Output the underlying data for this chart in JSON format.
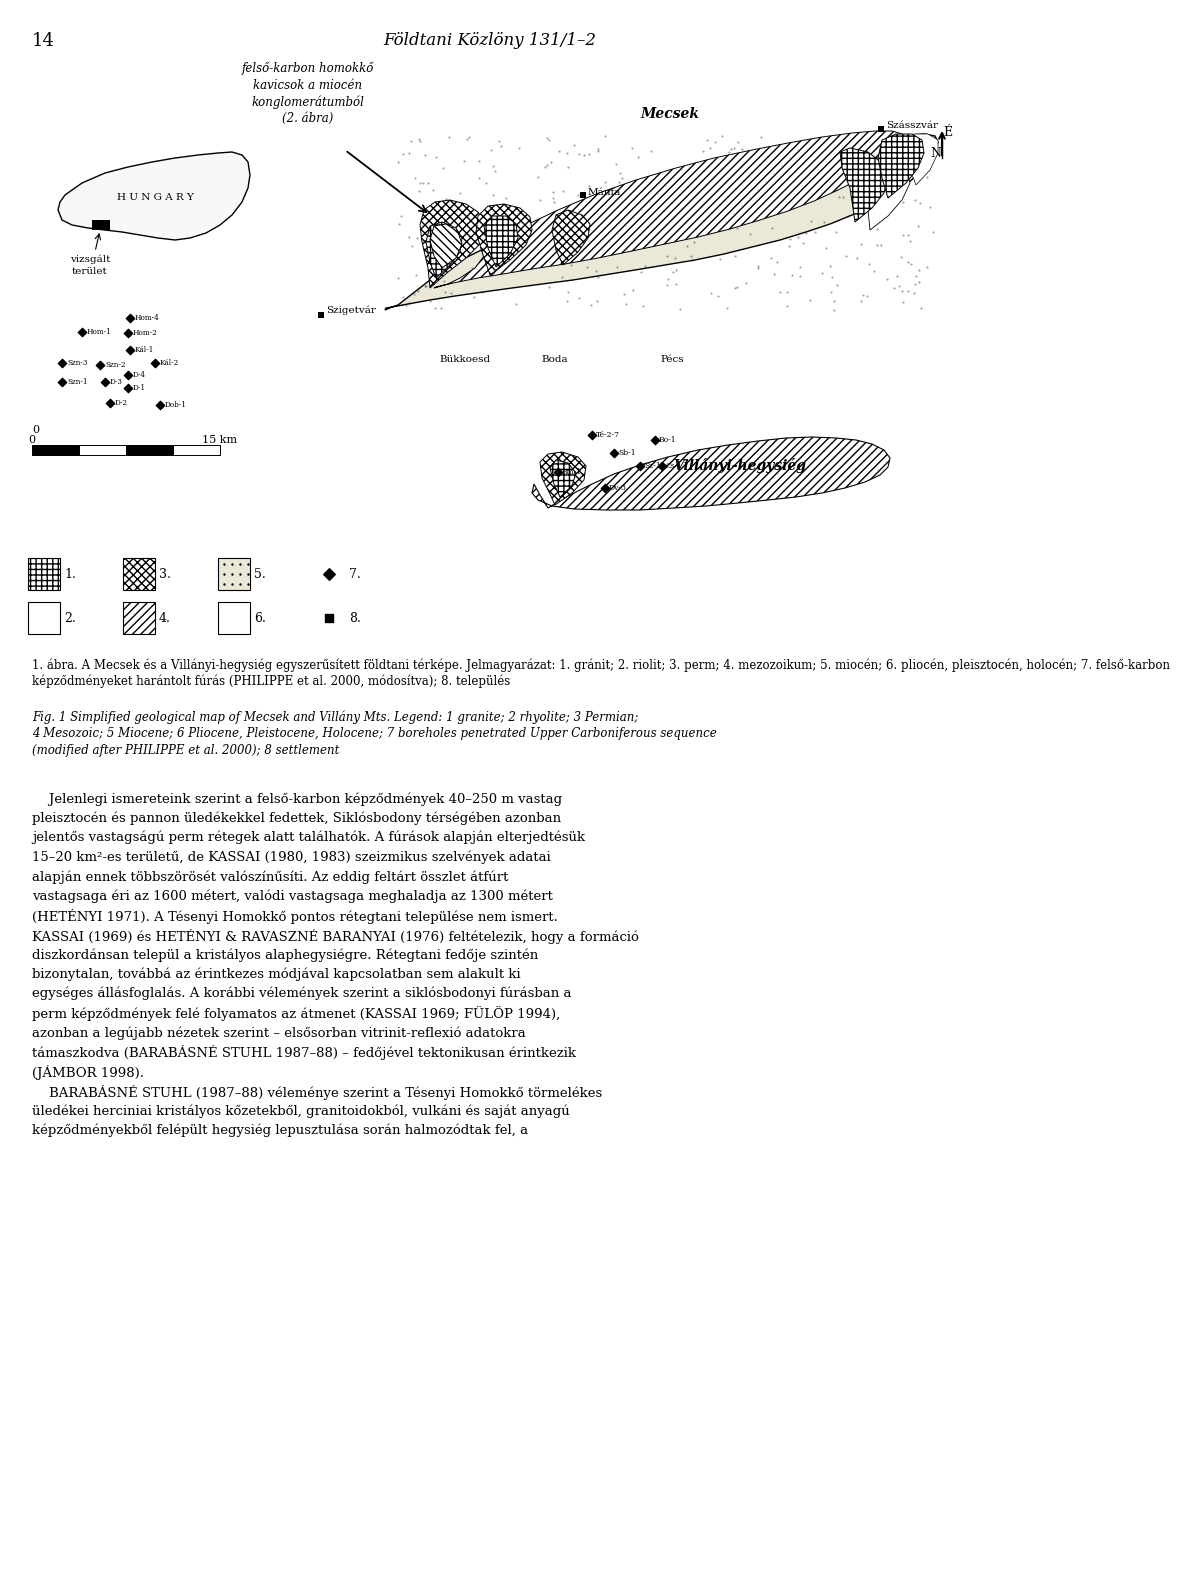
{
  "page_number": "14",
  "header": "Földtani Közlöny 131/1–2",
  "caption_hu_1": "1. ábra. A Mecsek és a Villányi-hegysiég egyszerűsített földtani térképe. Jelmagyarázat: 1. gránit; 2. riolit; 3. perm; 4. mezozoikum; 5. miocén; 6. pliocén, pleisztocén, holocén; 7. felső-karbon",
  "caption_hu_2": "képződményeket harántolt fúrás (PHILIPPE et al. 2000, módosítva); 8. település",
  "caption_en_1": "Fig. 1 Simplified geological map of Mecsek and Villány Mts. Legend: 1 granite; 2 rhyolite; 3 Permian;",
  "caption_en_2": "4 Mesozoic; 5 Miocene; 6 Pliocene, Pleistocene, Holocene; 7 boreholes penetrated Upper Carboniferous sequence",
  "caption_en_3": "(modified after PHILIPPE et al. 2000); 8 settlement",
  "body_lines": [
    "    Jelenlegi ismereteink szerint a felső-karbon képződmények 40–250 m vastag",
    "pleisztocén és pannon üledékekkel fedettek, Siklósbodony térségében azonban",
    "jelentős vastagságú perm rétegek alatt találhatók. A fúrások alapján elterjedtésük",
    "15–20 km²-es területű, de KASSAI (1980, 1983) szeizmikus szelvények adatai",
    "alapján ennek többszörösét valószínűsíti. Az eddig feltárt összlet átfúrt",
    "vastagsaga éri az 1600 métert, valódi vastagsaga meghaladja az 1300 métert",
    "(HETÉNYI 1971). A Tésenyi Homokkő pontos rétegtani települése nem ismert.",
    "KASSAI (1969) és HETÉNYI & RAVASZNÉ BARANYAI (1976) feltételezik, hogy a formáció",
    "diszkordánsan települ a kristályos alaphegysiégre. Rétegtani fedője szintén",
    "bizonytalan, továbbá az érintkezes módjával kapcsolatban sem alakult ki",
    "egységes állásfoglalás. A korábbi vélemények szerint a siklósbodonyi fúrásban a",
    "perm képződmények felé folyamatos az átmenet (KASSAI 1969; FÜLÖP 1994),",
    "azonban a legújabb nézetek szerint – elsősorban vitrinit-reflexió adatokra",
    "támaszkodva (BARABÁSNÉ STUHL 1987–88) – fedőjével tektonikusan érintkezik",
    "(JÁMBOR 1998).",
    "    BARABÁSNÉ STUHL (1987–88) véleménye szerint a Tésenyi Homokkő törmelékes",
    "üledékei herciniai kristályos kőzetekből, granitoidokból, vulkáni és saját anyagú",
    "képződményekből felépült hegysiég lepusztulása során halmozódtak fel, a"
  ],
  "annotation_text": "felső-karbon homokkő\nkavicsok a miocén\nkonglomerátumból\n(2. ábra)",
  "hungary_label": "H U N G A R Y",
  "inset_label": "vizsgált\nterület",
  "mecsek_label": "Mecsek",
  "szasszvar_label": "Szásszvár",
  "manfa_label": "Mánfa",
  "bukkosd_label": "Bükkoesd",
  "boda_label": "Boda",
  "pecs_label": "Pécs",
  "szigetvar_label": "Szigetvár",
  "villany_label": "Villányi-hegysiég",
  "north_N": "N",
  "north_E": "É",
  "scale_0": "0",
  "scale_15": "15 km",
  "legend_items": [
    "1.",
    "3.",
    "5.",
    "♦ 7.",
    "2.",
    "4.",
    "6.",
    "■ 8."
  ]
}
